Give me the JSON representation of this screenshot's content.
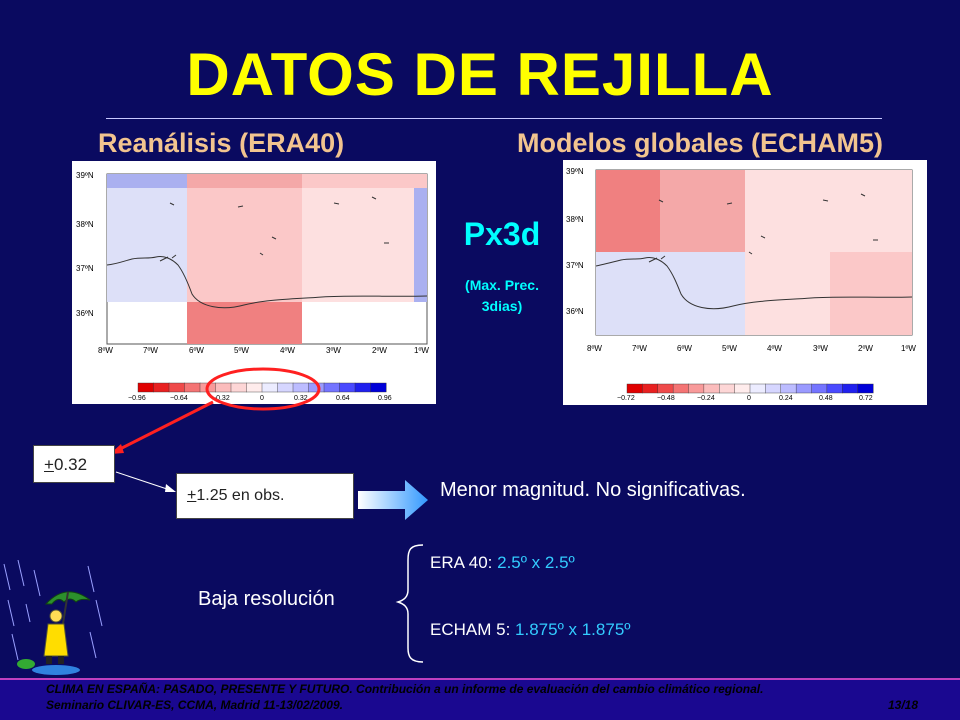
{
  "slide": {
    "title": "DATOS DE REJILLA",
    "left_subtitle": "Reanálisis (ERA40)",
    "right_subtitle": "Modelos globales (ECHAM5)",
    "center_label": "Px3d",
    "center_note_line1": "(Max. Prec.",
    "center_note_line2": "3dias)"
  },
  "maps": {
    "lat_labels": [
      "39ºN",
      "38ºN",
      "37ºN",
      "36ºN"
    ],
    "lon_labels": [
      "8ºW",
      "7ºW",
      "6ºW",
      "5ºW",
      "4ºW",
      "3ºW",
      "2ºW",
      "1ºW"
    ],
    "left_scale": [
      "−0.96",
      "−0.64",
      "−0.32",
      "0",
      "0.32",
      "0.64",
      "0.96"
    ],
    "right_scale": [
      "−0.72",
      "−0.48",
      "−0.24",
      "0",
      "0.24",
      "0.48",
      "0.72"
    ],
    "colors": {
      "strong_red": "#f08080",
      "light_red": "#fbc8c8",
      "pale_red": "#fde0e0",
      "pale_blue": "#dde0f8",
      "blue": "#aab0f0"
    }
  },
  "annotations": {
    "box1_sign": "+",
    "box1_value": "0.32",
    "box2_sign": "+",
    "box2_value": "1.25 en obs.",
    "conclusion": "Menor magnitud. No significativas.",
    "baja": "Baja resolución",
    "res1_label": "ERA 40: ",
    "res1_value": "2.5º x 2.5º",
    "res2_label": "ECHAM 5: ",
    "res2_value": "1.875º x 1.875º"
  },
  "footer": {
    "line1": "CLIMA EN ESPAÑA: PASADO, PRESENTE Y FUTURO. Contribución a un informe de evaluación del cambio climático regional.",
    "line2": "Seminario CLIVAR-ES, CCMA, Madrid 11-13/02/2009.",
    "page": "13/18"
  }
}
